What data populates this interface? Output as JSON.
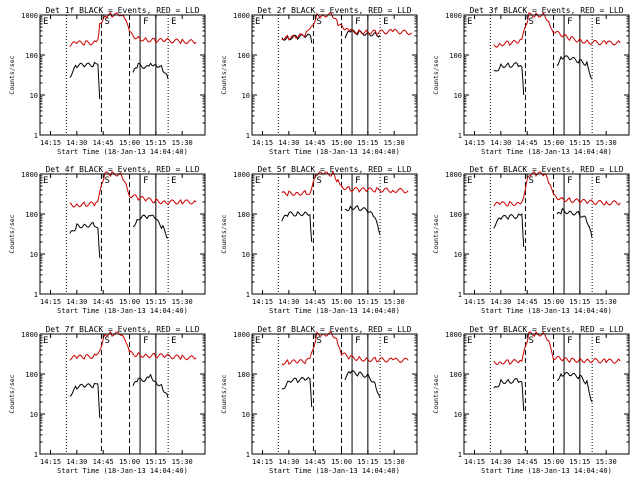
{
  "colors": {
    "events": "#000000",
    "lld": "#cc0000",
    "axis": "#000000",
    "background": "#ffffff"
  },
  "common": {
    "xlabel": "Start Time (18-Jan-13 14:04:40)",
    "ylabel": "Counts/sec",
    "y_tick_labels": [
      "1",
      "10",
      "100",
      "1000"
    ],
    "x_tick_labels": [
      "14:15",
      "14:30",
      "14:45",
      "15:00",
      "15:15",
      "15:30"
    ],
    "interval_markers": [
      "E",
      "S",
      "F",
      "E"
    ]
  },
  "chart_data": [
    {
      "type": "line",
      "title": "Det 1f BLACK = Events, RED = LLD",
      "xlabel": "Start Time (18-Jan-13 14:04:40)",
      "ylabel": "Counts/sec",
      "ylim": [
        1,
        1000
      ],
      "yscale": "log",
      "x_ticks": [
        "14:15",
        "14:30",
        "14:45",
        "15:00",
        "15:15",
        "15:30"
      ],
      "series": [
        {
          "name": "Events",
          "x": [
            "14:26",
            "14:30",
            "14:35",
            "14:40",
            "14:42",
            "14:43",
            "15:02",
            "15:05",
            "15:10",
            "15:12",
            "15:15",
            "15:19",
            "15:22"
          ],
          "values": [
            30,
            55,
            55,
            58,
            52,
            8,
            35,
            55,
            50,
            60,
            60,
            45,
            25
          ]
        },
        {
          "name": "LLD",
          "x": [
            "14:26",
            "14:30",
            "14:35",
            "14:40",
            "14:42",
            "14:43",
            "14:46",
            "14:50",
            "14:55",
            "14:58",
            "15:00",
            "15:05",
            "15:10",
            "15:15",
            "15:20",
            "15:30",
            "15:38"
          ],
          "values": [
            180,
            200,
            200,
            205,
            230,
            600,
            1000,
            1000,
            1000,
            700,
            350,
            260,
            240,
            230,
            230,
            220,
            210
          ]
        }
      ]
    },
    {
      "type": "line",
      "title": "Det 2f BLACK = Events, RED = LLD",
      "xlabel": "",
      "ylabel": "Counts/sec",
      "ylim": [
        1,
        1000
      ],
      "yscale": "log",
      "x_ticks": [],
      "series": [
        {
          "name": "Events",
          "x": [
            "14:26",
            "14:30",
            "14:35",
            "14:40",
            "14:42",
            "14:43",
            "15:02",
            "15:05",
            "15:10",
            "15:15",
            "15:20",
            "15:22"
          ],
          "values": [
            260,
            270,
            280,
            300,
            300,
            200,
            290,
            380,
            360,
            340,
            330,
            310
          ]
        },
        {
          "name": "LLD",
          "x": [
            "14:26",
            "14:30",
            "14:35",
            "14:40",
            "14:42",
            "14:46",
            "14:50",
            "14:55",
            "14:58",
            "15:02",
            "15:05",
            "15:10",
            "15:15",
            "15:20",
            "15:30",
            "15:40"
          ],
          "values": [
            270,
            270,
            280,
            350,
            400,
            1000,
            1000,
            1000,
            600,
            420,
            390,
            380,
            380,
            370,
            390,
            360
          ]
        }
      ]
    },
    {
      "type": "line",
      "title": "Det 3f BLACK = Events, RED = LLD",
      "xlabel": "",
      "ylabel": "Counts/sec",
      "ylim": [
        1,
        1000
      ],
      "yscale": "log",
      "x_ticks": [
        "14:15",
        "14:30",
        "14:45",
        "15:00",
        "15:15",
        "15:30"
      ],
      "series": [
        {
          "name": "Events",
          "x": [
            "14:26",
            "14:30",
            "14:35",
            "14:40",
            "14:42",
            "14:43",
            "15:02",
            "15:05",
            "15:10",
            "15:15",
            "15:19",
            "15:22"
          ],
          "values": [
            35,
            55,
            55,
            58,
            55,
            10,
            60,
            90,
            80,
            70,
            60,
            25
          ]
        },
        {
          "name": "LLD",
          "x": [
            "14:26",
            "14:30",
            "14:35",
            "14:40",
            "14:42",
            "14:46",
            "14:50",
            "14:55",
            "14:58",
            "15:00",
            "15:05",
            "15:10",
            "15:15",
            "15:20",
            "15:30",
            "15:38"
          ],
          "values": [
            170,
            190,
            200,
            210,
            240,
            1000,
            1000,
            1000,
            600,
            400,
            300,
            260,
            230,
            210,
            200,
            200
          ]
        }
      ]
    },
    {
      "type": "line",
      "title": "Det 4f BLACK = Events, RED = LLD",
      "xlabel": "",
      "ylabel": "Counts/sec",
      "ylim": [
        1,
        1000
      ],
      "yscale": "log",
      "x_ticks": [
        "14:15",
        "14:30",
        "14:45",
        "15:00",
        "15:15",
        "15:30"
      ],
      "series": [
        {
          "name": "Events",
          "x": [
            "14:26",
            "14:30",
            "14:35",
            "14:40",
            "14:42",
            "14:43",
            "15:02",
            "15:05",
            "15:10",
            "15:12",
            "15:15",
            "15:19",
            "15:22"
          ],
          "values": [
            30,
            50,
            52,
            55,
            50,
            8,
            50,
            80,
            85,
            95,
            70,
            45,
            25
          ]
        },
        {
          "name": "LLD",
          "x": [
            "14:26",
            "14:30",
            "14:35",
            "14:40",
            "14:42",
            "14:46",
            "14:50",
            "14:55",
            "14:58",
            "15:00",
            "15:05",
            "15:10",
            "15:15",
            "15:20",
            "15:30",
            "15:38"
          ],
          "values": [
            170,
            170,
            175,
            180,
            220,
            1000,
            1000,
            1000,
            600,
            300,
            250,
            230,
            210,
            200,
            200,
            200
          ]
        }
      ]
    },
    {
      "type": "line",
      "title": "Det 5f BLACK = Events, RED = LLD",
      "xlabel": "",
      "ylabel": "Counts/sec",
      "ylim": [
        1,
        1000
      ],
      "yscale": "log",
      "x_ticks": [
        "14:15",
        "14:30",
        "14:45",
        "15:00",
        "15:15",
        "15:30"
      ],
      "series": [
        {
          "name": "Events",
          "x": [
            "14:26",
            "14:30",
            "14:35",
            "14:40",
            "14:42",
            "14:43",
            "15:02",
            "15:05",
            "15:10",
            "15:15",
            "15:19",
            "15:22"
          ],
          "values": [
            70,
            100,
            100,
            105,
            100,
            20,
            120,
            150,
            140,
            120,
            80,
            30
          ]
        },
        {
          "name": "LLD",
          "x": [
            "14:26",
            "14:30",
            "14:35",
            "14:40",
            "14:42",
            "14:46",
            "14:50",
            "14:55",
            "14:58",
            "15:00",
            "15:05",
            "15:10",
            "15:15",
            "15:20",
            "15:30",
            "15:38"
          ],
          "values": [
            320,
            330,
            330,
            340,
            360,
            1000,
            1000,
            1000,
            650,
            480,
            420,
            400,
            400,
            400,
            390,
            380
          ]
        }
      ]
    },
    {
      "type": "line",
      "title": "Det 6f BLACK = Events, RED = LLD",
      "xlabel": "",
      "ylabel": "Counts/sec",
      "ylim": [
        1,
        1000
      ],
      "yscale": "log",
      "x_ticks": [
        "14:15",
        "14:30",
        "14:45",
        "15:00",
        "15:15",
        "15:30"
      ],
      "series": [
        {
          "name": "Events",
          "x": [
            "14:26",
            "14:30",
            "14:35",
            "14:40",
            "14:42",
            "14:43",
            "15:02",
            "15:05",
            "15:10",
            "15:15",
            "15:19",
            "15:22"
          ],
          "values": [
            50,
            80,
            85,
            88,
            90,
            15,
            90,
            120,
            110,
            100,
            70,
            25
          ]
        },
        {
          "name": "LLD",
          "x": [
            "14:26",
            "14:30",
            "14:35",
            "14:40",
            "14:42",
            "14:46",
            "14:50",
            "14:55",
            "14:58",
            "15:00",
            "15:05",
            "15:10",
            "15:15",
            "15:20",
            "15:30",
            "15:38"
          ],
          "values": [
            170,
            180,
            180,
            185,
            200,
            1000,
            1000,
            1000,
            500,
            280,
            240,
            220,
            210,
            200,
            190,
            190
          ]
        }
      ]
    },
    {
      "type": "line",
      "title": "Det 7f BLACK = Events, RED = LLD",
      "xlabel": "",
      "ylabel": "Counts/sec",
      "ylim": [
        1,
        1000
      ],
      "yscale": "log",
      "x_ticks": [
        "14:15",
        "14:30",
        "14:45",
        "15:00",
        "15:15",
        "15:30"
      ],
      "series": [
        {
          "name": "Events",
          "x": [
            "14:26",
            "14:30",
            "14:35",
            "14:40",
            "14:42",
            "14:43",
            "15:02",
            "15:05",
            "15:10",
            "15:12",
            "15:15",
            "15:19",
            "15:22"
          ],
          "values": [
            30,
            48,
            50,
            52,
            50,
            8,
            50,
            70,
            75,
            90,
            65,
            45,
            25
          ]
        },
        {
          "name": "LLD",
          "x": [
            "14:26",
            "14:30",
            "14:35",
            "14:40",
            "14:42",
            "14:46",
            "14:50",
            "14:55",
            "14:58",
            "15:00",
            "15:05",
            "15:10",
            "15:15",
            "15:20",
            "15:30",
            "15:38"
          ],
          "values": [
            250,
            260,
            270,
            280,
            300,
            1000,
            1000,
            1000,
            600,
            330,
            300,
            290,
            290,
            280,
            260,
            250
          ]
        }
      ]
    },
    {
      "type": "line",
      "title": "Det 8f BLACK = Events, RED = LLD",
      "xlabel": "",
      "ylabel": "Counts/sec",
      "ylim": [
        1,
        1000
      ],
      "yscale": "log",
      "x_ticks": [
        "14:15",
        "14:30",
        "14:45",
        "15:00",
        "15:15",
        "15:30"
      ],
      "series": [
        {
          "name": "Events",
          "x": [
            "14:26",
            "14:30",
            "14:35",
            "14:40",
            "14:42",
            "14:43",
            "15:02",
            "15:05",
            "15:10",
            "15:15",
            "15:19",
            "15:22"
          ],
          "values": [
            40,
            70,
            70,
            75,
            75,
            15,
            80,
            110,
            100,
            90,
            60,
            25
          ]
        },
        {
          "name": "LLD",
          "x": [
            "14:26",
            "14:30",
            "14:35",
            "14:40",
            "14:42",
            "14:46",
            "14:50",
            "14:55",
            "14:58",
            "15:00",
            "15:05",
            "15:10",
            "15:15",
            "15:20",
            "15:30",
            "15:38"
          ],
          "values": [
            190,
            200,
            200,
            210,
            220,
            1000,
            1000,
            1000,
            600,
            320,
            260,
            240,
            230,
            230,
            220,
            220
          ]
        }
      ]
    },
    {
      "type": "line",
      "title": "Det 9f BLACK = Events, RED = LLD",
      "xlabel": "",
      "ylabel": "Counts/sec",
      "ylim": [
        1,
        1000
      ],
      "yscale": "log",
      "x_ticks": [
        "14:15",
        "14:30",
        "14:45",
        "15:00",
        "15:15",
        "15:30"
      ],
      "series": [
        {
          "name": "Events",
          "x": [
            "14:26",
            "14:30",
            "14:35",
            "14:40",
            "14:42",
            "14:43",
            "15:02",
            "15:05",
            "15:10",
            "15:15",
            "15:19",
            "15:22"
          ],
          "values": [
            40,
            65,
            65,
            70,
            70,
            12,
            75,
            100,
            95,
            85,
            60,
            20
          ]
        },
        {
          "name": "LLD",
          "x": [
            "14:26",
            "14:30",
            "14:35",
            "14:40",
            "14:42",
            "14:46",
            "14:50",
            "14:55",
            "14:58",
            "15:00",
            "15:05",
            "15:10",
            "15:15",
            "15:20",
            "15:30",
            "15:38"
          ],
          "values": [
            190,
            200,
            200,
            205,
            210,
            1000,
            1000,
            1000,
            600,
            260,
            230,
            220,
            220,
            220,
            210,
            210
          ]
        }
      ]
    }
  ]
}
